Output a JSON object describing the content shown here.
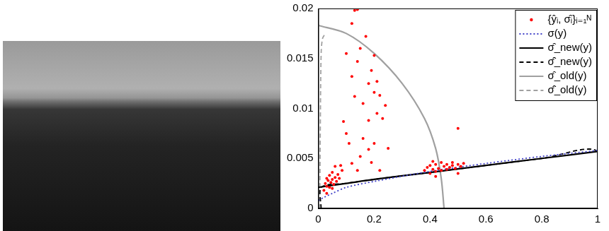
{
  "chart_data": {
    "type": "scatter",
    "xlim": [
      0,
      1
    ],
    "xticks": [
      0,
      0.2,
      0.4,
      0.6,
      0.8,
      1
    ],
    "ylim": [
      0,
      0.02
    ],
    "yticks": [
      0,
      0.005,
      0.01,
      0.015,
      0.02
    ],
    "grid": false,
    "legend": "upper right",
    "series": [
      {
        "name": "{ŷᵢ, σ̂ᵢ}ᵢ₌₁ᴺ",
        "type": "scatter",
        "color": "#ff0000",
        "marker": "circle",
        "line_style": "none",
        "x": [
          0.02,
          0.025,
          0.03,
          0.03,
          0.035,
          0.04,
          0.04,
          0.045,
          0.05,
          0.05,
          0.055,
          0.06,
          0.06,
          0.065,
          0.07,
          0.075,
          0.08,
          0.085,
          0.03,
          0.05,
          0.09,
          0.1,
          0.1,
          0.11,
          0.12,
          0.12,
          0.13,
          0.13,
          0.14,
          0.14,
          0.15,
          0.15,
          0.16,
          0.17,
          0.18,
          0.18,
          0.19,
          0.19,
          0.2,
          0.2,
          0.21,
          0.21,
          0.22,
          0.22,
          0.23,
          0.24,
          0.25,
          0.12,
          0.16,
          0.2,
          0.14,
          0.18,
          0.38,
          0.39,
          0.4,
          0.4,
          0.41,
          0.42,
          0.42,
          0.43,
          0.44,
          0.44,
          0.45,
          0.46,
          0.46,
          0.47,
          0.48,
          0.48,
          0.49,
          0.5,
          0.5,
          0.51,
          0.52,
          0.42,
          0.5,
          0.41
        ],
        "values": [
          0.0018,
          0.0025,
          0.0022,
          0.003,
          0.0028,
          0.0021,
          0.0033,
          0.0026,
          0.0029,
          0.0036,
          0.0024,
          0.0031,
          0.0042,
          0.0027,
          0.0034,
          0.003,
          0.0043,
          0.0038,
          0.0015,
          0.002,
          0.0087,
          0.0155,
          0.0075,
          0.0065,
          0.0185,
          0.0132,
          0.0198,
          0.0112,
          0.0199,
          0.0147,
          0.016,
          0.0052,
          0.0105,
          0.0172,
          0.0125,
          0.0088,
          0.0138,
          0.0046,
          0.0116,
          0.0065,
          0.0127,
          0.0095,
          0.0113,
          0.0038,
          0.009,
          0.0103,
          0.006,
          0.0045,
          0.007,
          0.0153,
          0.0038,
          0.0059,
          0.0038,
          0.0041,
          0.0035,
          0.0043,
          0.0039,
          0.0037,
          0.0044,
          0.004,
          0.0038,
          0.0046,
          0.0042,
          0.0039,
          0.0044,
          0.0041,
          0.0043,
          0.0046,
          0.004,
          0.0044,
          0.008,
          0.0042,
          0.0045,
          0.0032,
          0.0035,
          0.0047
        ]
      },
      {
        "name": "σ(y)",
        "type": "line",
        "color": "#4040c8",
        "marker": "none",
        "line_style": "dotted",
        "x": [
          0,
          0.02,
          0.05,
          0.1,
          0.2,
          0.4,
          0.6,
          0.8,
          1
        ],
        "values": [
          0.0008,
          0.0011,
          0.0015,
          0.0021,
          0.0027,
          0.0037,
          0.0045,
          0.0052,
          0.0058
        ]
      },
      {
        "name": "σ̂_new(y)",
        "type": "line",
        "color": "#000000",
        "marker": "none",
        "line_style": "solid",
        "x": [
          0,
          0.1,
          0.2,
          0.4,
          0.6,
          0.8,
          1
        ],
        "values": [
          0.0021,
          0.0025,
          0.0029,
          0.0036,
          0.0043,
          0.005,
          0.0057
        ]
      },
      {
        "name": "σ̂̂_new(y)",
        "type": "line",
        "color": "#000000",
        "marker": "none",
        "line_style": "dashed",
        "x": [
          0.01,
          0.01,
          0.1,
          0.2,
          0.4,
          0.6,
          0.8,
          1,
          1
        ],
        "values": [
          0,
          0.0021,
          0.0025,
          0.0029,
          0.0036,
          0.0043,
          0.005,
          0.0057,
          0
        ]
      },
      {
        "name": "σ̂_old(y)",
        "type": "line",
        "color": "#a0a0a0",
        "marker": "none",
        "line_style": "solid",
        "x": [
          0,
          0.1,
          0.2,
          0.3,
          0.38,
          0.42,
          0.44,
          0.45
        ],
        "values": [
          0.0183,
          0.0175,
          0.0155,
          0.0125,
          0.009,
          0.006,
          0.003,
          0
        ]
      },
      {
        "name": "σ̂̂_old(y)",
        "type": "line",
        "color": "#a0a0a0",
        "marker": "none",
        "line_style": "dashed",
        "x": [
          0.005,
          0.007,
          0.01,
          0.015,
          0.025
        ],
        "values": [
          0,
          0.008,
          0.0155,
          0.017,
          0.0175
        ]
      }
    ]
  }
}
